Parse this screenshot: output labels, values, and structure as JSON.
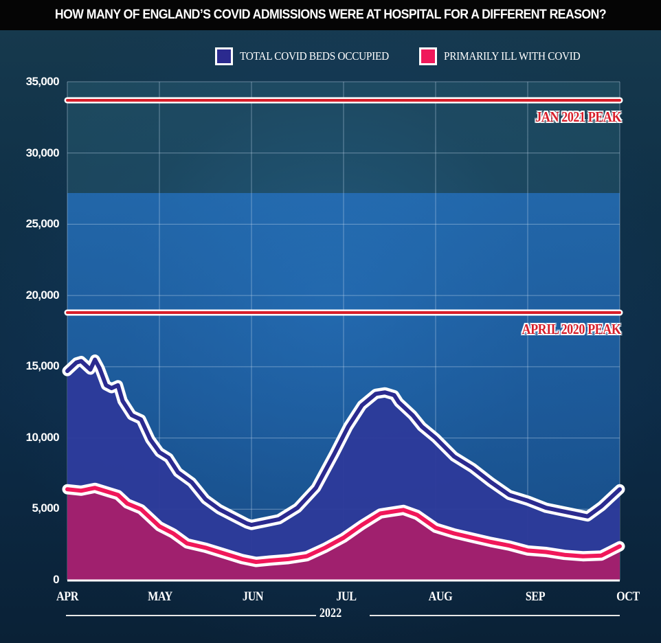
{
  "header": {
    "title": "HOW MANY OF ENGLAND’S COVID ADMISSIONS WERE AT HOSPITAL FOR A DIFFERENT REASON?"
  },
  "colors": {
    "total": "#2b2a8f",
    "total_fill": "#2d3a9a",
    "primary": "#f0185a",
    "primary_fill": "#a41f6c",
    "peak_line": "#d81e2a",
    "outline": "#ffffff"
  },
  "chart_data": {
    "type": "area",
    "title": "HOW MANY OF ENGLAND’S COVID ADMISSIONS WERE AT HOSPITAL FOR A DIFFERENT REASON?",
    "xlabel": "2022",
    "ylabel": "",
    "ylim": [
      0,
      35000
    ],
    "xlim": [
      0,
      6
    ],
    "grid": true,
    "legend_position": "top-right",
    "x_tick_labels": [
      "APR",
      "MAY",
      "JUN",
      "JUL",
      "AUG",
      "SEP",
      "OCT"
    ],
    "y_tick_labels": [
      "35,000",
      "30,000",
      "25,000",
      "20,000",
      "15,000",
      "10,000",
      "5,000",
      "0"
    ],
    "y_ticks": [
      35000,
      30000,
      25000,
      20000,
      15000,
      10000,
      5000,
      0
    ],
    "x_unit": "months since 1 Apr 2022",
    "series": [
      {
        "name": "TOTAL COVID BEDS OCCUPIED",
        "x": [
          0,
          0.1,
          0.15,
          0.25,
          0.3,
          0.35,
          0.42,
          0.48,
          0.55,
          0.6,
          0.7,
          0.8,
          0.9,
          1.0,
          1.1,
          1.2,
          1.35,
          1.5,
          1.65,
          1.8,
          1.95,
          2.0,
          2.15,
          2.3,
          2.5,
          2.7,
          2.9,
          3.05,
          3.2,
          3.35,
          3.45,
          3.55,
          3.6,
          3.65,
          3.75,
          3.85,
          4.0,
          4.2,
          4.4,
          4.6,
          4.8,
          5.0,
          5.2,
          5.35,
          5.5,
          5.65,
          5.8,
          6.0
        ],
        "values": [
          14700,
          15300,
          15400,
          14800,
          15500,
          14900,
          13700,
          13500,
          13700,
          12600,
          11600,
          11300,
          9900,
          9000,
          8600,
          7600,
          6900,
          5700,
          5000,
          4500,
          4000,
          3900,
          4100,
          4300,
          5100,
          6500,
          8900,
          10800,
          12300,
          13100,
          13200,
          13000,
          12500,
          12200,
          11600,
          10800,
          10000,
          8700,
          7900,
          6900,
          6000,
          5600,
          5100,
          4900,
          4700,
          4500,
          5200,
          6400
        ]
      },
      {
        "name": "PRIMARILY ILL WITH COVID",
        "x": [
          0,
          0.15,
          0.3,
          0.45,
          0.55,
          0.65,
          0.8,
          1.0,
          1.15,
          1.3,
          1.5,
          1.7,
          1.9,
          2.05,
          2.2,
          2.4,
          2.6,
          2.8,
          3.0,
          3.2,
          3.4,
          3.5,
          3.65,
          3.8,
          4.0,
          4.2,
          4.4,
          4.6,
          4.8,
          5.0,
          5.2,
          5.4,
          5.6,
          5.8,
          6.0
        ],
        "values": [
          6400,
          6300,
          6500,
          6200,
          6000,
          5400,
          5000,
          3800,
          3300,
          2600,
          2300,
          1900,
          1500,
          1300,
          1400,
          1500,
          1700,
          2300,
          3000,
          3900,
          4700,
          4800,
          4950,
          4600,
          3700,
          3300,
          3000,
          2700,
          2450,
          2100,
          2000,
          1800,
          1700,
          1750,
          2400
        ]
      }
    ],
    "annotations": [
      {
        "label": "JAN 2021 PEAK",
        "value": 33700
      },
      {
        "label": "APRIL 2020 PEAK",
        "value": 18800
      }
    ]
  }
}
